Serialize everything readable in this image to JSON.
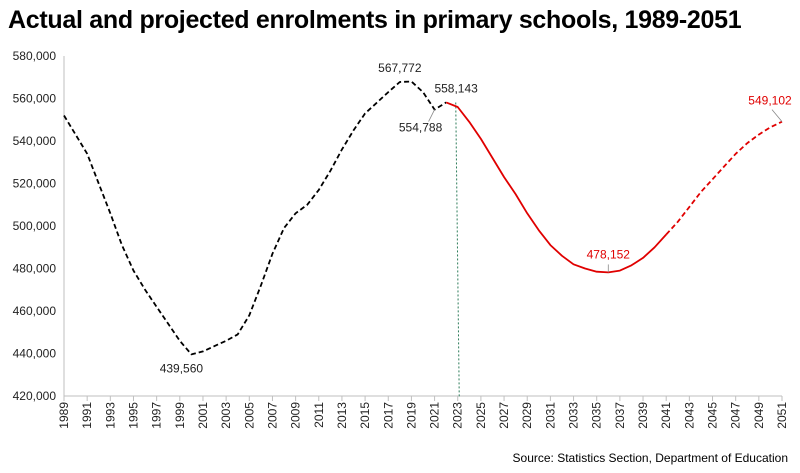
{
  "chart_data": {
    "type": "line",
    "title": "Actual and projected enrolments in primary schools, 1989-2051",
    "source": "Source: Statistics Section, Department of Education",
    "xlim": [
      1989,
      2051
    ],
    "ylim": [
      420000,
      580000
    ],
    "ytick_step": 20000,
    "xtick_step": 2,
    "reference_line_x": 2023,
    "colors": {
      "actual": "#000000",
      "projected": "#e00000",
      "reference": "#2e7d5b"
    },
    "series": [
      {
        "style": "dashed",
        "color": "#000000",
        "x": [
          1989,
          1990,
          1991,
          1992,
          1993,
          1994,
          1995,
          1996,
          1997,
          1998,
          1999,
          2000,
          2001,
          2002,
          2003,
          2004,
          2005,
          2006,
          2007,
          2008,
          2009,
          2010,
          2011,
          2012,
          2013,
          2014,
          2015,
          2016,
          2017,
          2018,
          2019,
          2020,
          2021,
          2022
        ],
        "values": [
          552000,
          543000,
          534000,
          520000,
          506000,
          491000,
          479000,
          470000,
          462000,
          454000,
          446000,
          439560,
          441000,
          443500,
          446000,
          449000,
          458000,
          472000,
          487000,
          499000,
          506000,
          510000,
          517000,
          526000,
          536000,
          545000,
          553000,
          558000,
          563000,
          567772,
          568000,
          563000,
          554788,
          558143
        ]
      },
      {
        "style": "solid",
        "color": "#e00000",
        "x": [
          2022,
          2023,
          2024,
          2025,
          2026,
          2027,
          2028,
          2029,
          2030,
          2031,
          2032,
          2033,
          2034,
          2035,
          2036,
          2037,
          2038,
          2039,
          2040,
          2041
        ],
        "values": [
          558143,
          556000,
          549000,
          541000,
          532000,
          523000,
          515000,
          506000,
          498000,
          491000,
          486000,
          482000,
          480000,
          478500,
          478152,
          479000,
          481500,
          485000,
          490000,
          496000
        ]
      },
      {
        "style": "dashed",
        "color": "#e00000",
        "x": [
          2041,
          2042,
          2043,
          2044,
          2045,
          2046,
          2047,
          2048,
          2049,
          2050,
          2051
        ],
        "values": [
          496000,
          502000,
          509000,
          516000,
          522000,
          528000,
          534000,
          539000,
          543000,
          546500,
          549102
        ]
      }
    ],
    "annotations": [
      {
        "text": "439,560",
        "x": 2000,
        "value": 439560,
        "color": "#222222"
      },
      {
        "text": "567,772",
        "x": 2018,
        "value": 567772,
        "color": "#222222"
      },
      {
        "text": "554,788",
        "x": 2021,
        "value": 554788,
        "color": "#222222"
      },
      {
        "text": "558,143",
        "x": 2022,
        "value": 558143,
        "color": "#222222"
      },
      {
        "text": "478,152",
        "x": 2036,
        "value": 478152,
        "color": "#e00000"
      },
      {
        "text": "549,102",
        "x": 2051,
        "value": 549102,
        "color": "#e00000"
      }
    ]
  }
}
